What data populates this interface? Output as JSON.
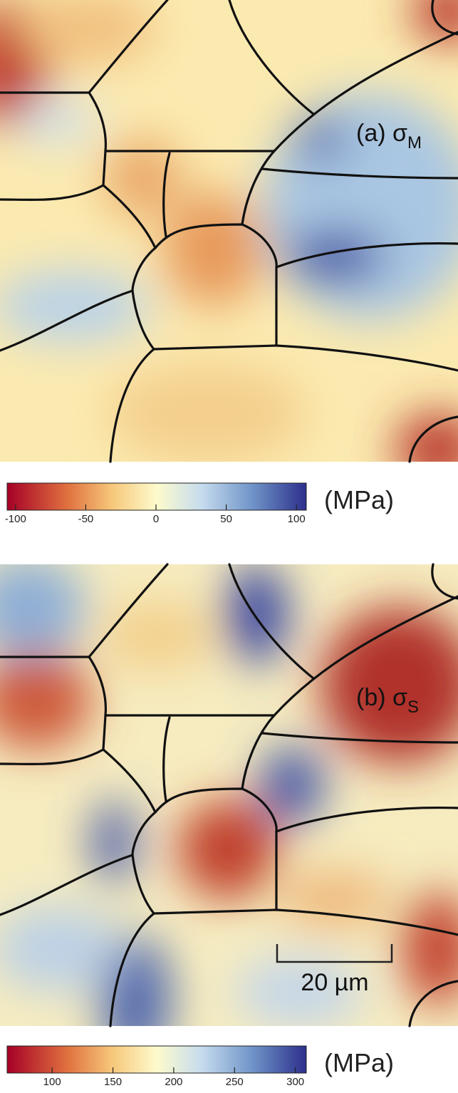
{
  "panels": [
    {
      "label": "(a) σ",
      "label_sub": "M",
      "colorbar": {
        "lim": [
          -106,
          107
        ],
        "ticks": [
          -100,
          -50,
          0,
          50,
          100
        ],
        "unit": "(MPa)"
      }
    },
    {
      "label": "(b) σ",
      "label_sub": "S",
      "colorbar": {
        "lim": [
          63,
          309
        ],
        "ticks": [
          100,
          150,
          200,
          250,
          300
        ],
        "unit": "(MPa)"
      }
    }
  ],
  "scale_bar": "20 µm"
}
